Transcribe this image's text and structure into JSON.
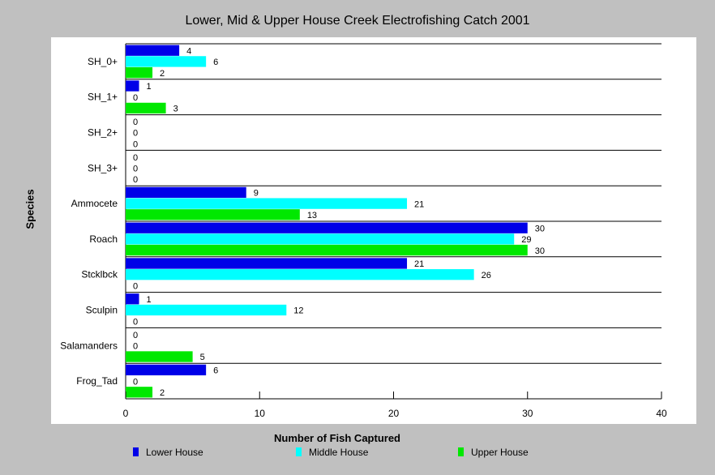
{
  "chart_data": {
    "type": "bar",
    "orientation": "horizontal",
    "title": "Lower, Mid & Upper House Creek Electrofishing Catch 2001",
    "xlabel": "Number of Fish Captured",
    "ylabel": "Species",
    "xlim": [
      0,
      40
    ],
    "xticks": [
      0,
      10,
      20,
      30,
      40
    ],
    "categories": [
      "SH_0+",
      "SH_1+",
      "SH_2+",
      "SH_3+",
      "Ammocete",
      "Roach",
      "Stcklbck",
      "Sculpin",
      "Salamanders",
      "Frog_Tad"
    ],
    "series": [
      {
        "name": "Lower House",
        "color": "#0000e8",
        "values": [
          4,
          1,
          0,
          0,
          9,
          30,
          21,
          1,
          0,
          6
        ]
      },
      {
        "name": "Middle House",
        "color": "#00ffff",
        "values": [
          6,
          0,
          0,
          0,
          21,
          29,
          26,
          12,
          0,
          0
        ]
      },
      {
        "name": "Upper House",
        "color": "#00e800",
        "values": [
          2,
          3,
          0,
          0,
          13,
          30,
          0,
          0,
          5,
          2
        ]
      }
    ],
    "legend_position": "bottom",
    "grid": "category separators"
  }
}
